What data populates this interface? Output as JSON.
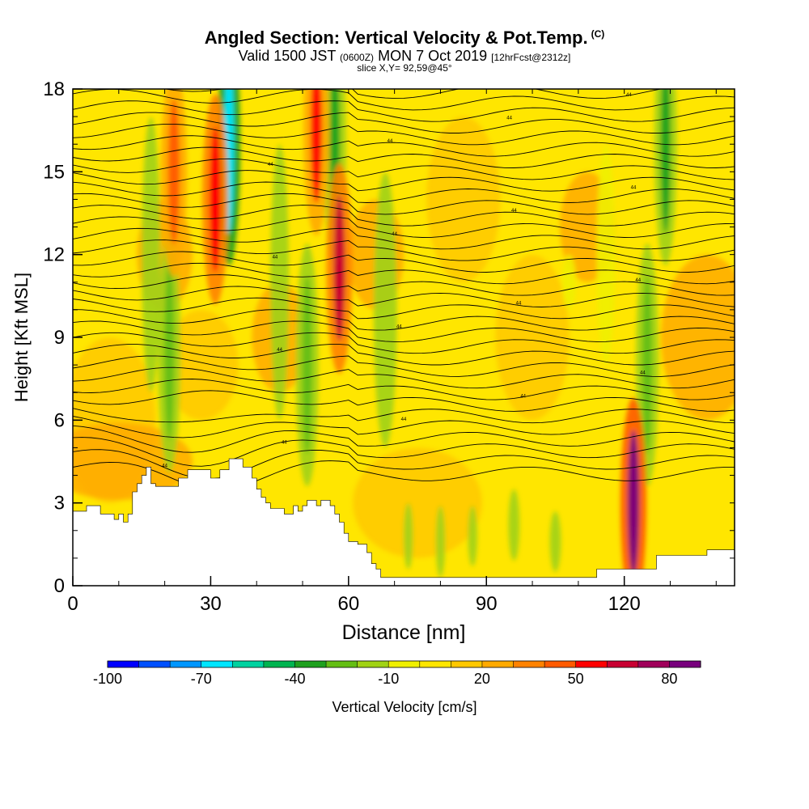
{
  "header": {
    "title_main": "Angled Section: Vertical Velocity & Pot.Temp.",
    "title_units": "(C)",
    "valid_prefix": "Valid 1500 JST",
    "valid_zulu": "(0600Z)",
    "valid_date": "MON 7 Oct 2019",
    "forecast": "[12hrFcst@2312z]",
    "slice": "slice X,Y= 92,59@45°"
  },
  "chart_data": {
    "type": "heatmap",
    "title": "Angled Section: Vertical Velocity & Pot.Temp.",
    "xlabel": "Distance [nm]",
    "ylabel": "Height [Kft MSL]",
    "xlim": [
      0,
      144
    ],
    "ylim": [
      0,
      18
    ],
    "x_ticks": [
      0,
      30,
      60,
      90,
      120
    ],
    "y_ticks": [
      0,
      3,
      6,
      9,
      12,
      15,
      18
    ],
    "colorbar": {
      "label": "Vertical Velocity [cm/s]",
      "tick_labels": [
        "-100",
        "-70",
        "-40",
        "-10",
        "20",
        "50",
        "80"
      ],
      "bins": [
        -100,
        -90,
        -80,
        -70,
        -60,
        -50,
        -40,
        -30,
        -20,
        -10,
        0,
        10,
        20,
        30,
        40,
        50,
        60,
        70,
        80,
        90
      ],
      "colors": [
        "#0000ff",
        "#0050ff",
        "#0096ff",
        "#00e6ff",
        "#00d2a0",
        "#00b450",
        "#1ea01e",
        "#64be14",
        "#a0d214",
        "#f0f000",
        "#ffe600",
        "#ffc800",
        "#ffaa00",
        "#ff8200",
        "#ff5a00",
        "#ff0000",
        "#c80032",
        "#a0005a",
        "#78007d"
      ]
    },
    "terrain": [
      [
        0,
        2.7
      ],
      [
        3,
        2.7
      ],
      [
        3,
        2.9
      ],
      [
        6,
        2.9
      ],
      [
        6,
        2.6
      ],
      [
        9,
        2.6
      ],
      [
        9,
        2.4
      ],
      [
        10,
        2.4
      ],
      [
        10,
        2.6
      ],
      [
        11,
        2.6
      ],
      [
        11,
        2.3
      ],
      [
        12,
        2.3
      ],
      [
        12,
        2.6
      ],
      [
        13,
        2.6
      ],
      [
        13,
        3.4
      ],
      [
        14,
        3.4
      ],
      [
        14,
        3.7
      ],
      [
        15,
        3.7
      ],
      [
        15,
        4.0
      ],
      [
        16,
        4.0
      ],
      [
        16,
        4.3
      ],
      [
        17,
        4.3
      ],
      [
        17,
        3.7
      ],
      [
        18,
        3.7
      ],
      [
        18,
        3.6
      ],
      [
        23,
        3.6
      ],
      [
        23,
        3.9
      ],
      [
        25,
        3.9
      ],
      [
        25,
        4.2
      ],
      [
        30,
        4.2
      ],
      [
        30,
        3.9
      ],
      [
        32,
        3.9
      ],
      [
        32,
        4.2
      ],
      [
        34,
        4.2
      ],
      [
        34,
        4.6
      ],
      [
        37,
        4.6
      ],
      [
        37,
        4.3
      ],
      [
        39,
        4.3
      ],
      [
        39,
        3.9
      ],
      [
        40,
        3.9
      ],
      [
        40,
        3.5
      ],
      [
        41,
        3.5
      ],
      [
        41,
        3.2
      ],
      [
        42,
        3.2
      ],
      [
        42,
        3.0
      ],
      [
        43,
        3.0
      ],
      [
        43,
        2.8
      ],
      [
        46,
        2.8
      ],
      [
        46,
        2.6
      ],
      [
        48,
        2.6
      ],
      [
        48,
        2.9
      ],
      [
        49,
        2.9
      ],
      [
        49,
        2.7
      ],
      [
        50,
        2.7
      ],
      [
        50,
        2.9
      ],
      [
        51,
        2.9
      ],
      [
        51,
        3.1
      ],
      [
        53,
        3.1
      ],
      [
        53,
        2.9
      ],
      [
        54,
        2.9
      ],
      [
        54,
        3.1
      ],
      [
        56,
        3.1
      ],
      [
        56,
        2.9
      ],
      [
        57,
        2.9
      ],
      [
        57,
        2.6
      ],
      [
        58,
        2.6
      ],
      [
        58,
        2.3
      ],
      [
        59,
        2.3
      ],
      [
        59,
        1.9
      ],
      [
        60,
        1.9
      ],
      [
        60,
        1.6
      ],
      [
        62,
        1.6
      ],
      [
        62,
        1.5
      ],
      [
        64,
        1.5
      ],
      [
        64,
        1.2
      ],
      [
        65,
        1.2
      ],
      [
        65,
        0.8
      ],
      [
        66,
        0.8
      ],
      [
        66,
        0.6
      ],
      [
        67,
        0.6
      ],
      [
        67,
        0.3
      ],
      [
        114,
        0.3
      ],
      [
        114,
        0.6
      ],
      [
        127,
        0.6
      ],
      [
        127,
        1.1
      ],
      [
        138,
        1.1
      ],
      [
        138,
        1.3
      ],
      [
        144,
        1.3
      ]
    ],
    "updraft_cores": [
      {
        "x": 122,
        "y": 3.0,
        "w_cm_s": 90
      },
      {
        "x": 58,
        "y": 11.5,
        "w_cm_s": 60
      },
      {
        "x": 31,
        "y": 14.0,
        "w_cm_s": 55
      },
      {
        "x": 53,
        "y": 16.5,
        "w_cm_s": 50
      },
      {
        "x": 22,
        "y": 15.0,
        "w_cm_s": 40
      }
    ],
    "downdraft_cores": [
      {
        "x": 34,
        "y": 16.0,
        "w_cm_s": -70
      },
      {
        "x": 57,
        "y": 16.0,
        "w_cm_s": -40
      },
      {
        "x": 21,
        "y": 8.5,
        "w_cm_s": -30
      },
      {
        "x": 51,
        "y": 8.0,
        "w_cm_s": -30
      },
      {
        "x": 129,
        "y": 16.0,
        "w_cm_s": -40
      },
      {
        "x": 125,
        "y": 8.0,
        "w_cm_s": -25
      }
    ],
    "isentrope_label_value": "44"
  }
}
